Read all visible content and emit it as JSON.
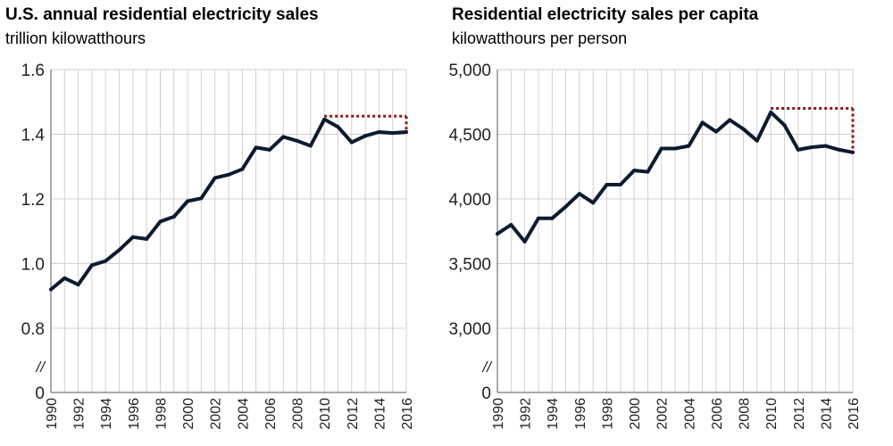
{
  "chart_data": [
    {
      "type": "line",
      "title": "U.S. annual residential electricity sales",
      "subtitle": "trillion kilowatthours",
      "xlabel": "",
      "ylabel": "",
      "x": [
        1990,
        1991,
        1992,
        1993,
        1994,
        1995,
        1996,
        1997,
        1998,
        1999,
        2000,
        2001,
        2002,
        2003,
        2004,
        2005,
        2006,
        2007,
        2008,
        2009,
        2010,
        2011,
        2012,
        2013,
        2014,
        2015,
        2016
      ],
      "series": [
        {
          "values": [
            0.92,
            0.955,
            0.935,
            0.995,
            1.008,
            1.042,
            1.082,
            1.076,
            1.13,
            1.145,
            1.193,
            1.202,
            1.265,
            1.275,
            1.292,
            1.359,
            1.352,
            1.392,
            1.38,
            1.364,
            1.446,
            1.423,
            1.375,
            1.395,
            1.407,
            1.404,
            1.407
          ]
        }
      ],
      "yticks": [
        "0",
        "0.8",
        "1.0",
        "1.2",
        "1.4",
        "1.6"
      ],
      "xticks": [
        "1990",
        "1992",
        "1994",
        "1996",
        "1998",
        "2000",
        "2002",
        "2004",
        "2006",
        "2008",
        "2010",
        "2012",
        "2014",
        "2016"
      ],
      "ylim": [
        0.8,
        1.6
      ],
      "axis_break": "//",
      "reference": {
        "from_year": 2010,
        "to_year": 2016,
        "level": 1.456,
        "color": "#8b1a1a"
      },
      "line_color": "#0d1b2f",
      "grid": true
    },
    {
      "type": "line",
      "title": "Residential electricity sales per capita",
      "subtitle": "kilowatthours per person",
      "xlabel": "",
      "ylabel": "",
      "x": [
        1990,
        1991,
        1992,
        1993,
        1994,
        1995,
        1996,
        1997,
        1998,
        1999,
        2000,
        2001,
        2002,
        2003,
        2004,
        2005,
        2006,
        2007,
        2008,
        2009,
        2010,
        2011,
        2012,
        2013,
        2014,
        2015,
        2016
      ],
      "series": [
        {
          "values": [
            3730,
            3800,
            3670,
            3850,
            3850,
            3940,
            4040,
            3970,
            4110,
            4110,
            4220,
            4210,
            4390,
            4390,
            4410,
            4590,
            4520,
            4610,
            4540,
            4450,
            4670,
            4570,
            4380,
            4400,
            4410,
            4380,
            4360
          ]
        }
      ],
      "yticks": [
        "0",
        "3,000",
        "3,500",
        "4,000",
        "4,500",
        "5,000"
      ],
      "xticks": [
        "1990",
        "1992",
        "1994",
        "1996",
        "1998",
        "2000",
        "2002",
        "2004",
        "2006",
        "2008",
        "2010",
        "2012",
        "2014",
        "2016"
      ],
      "ylim": [
        3000,
        5000
      ],
      "axis_break": "//",
      "reference": {
        "from_year": 2010,
        "to_year": 2016,
        "level": 4700,
        "color": "#8b1a1a"
      },
      "line_color": "#0d1b2f",
      "grid": true
    }
  ]
}
